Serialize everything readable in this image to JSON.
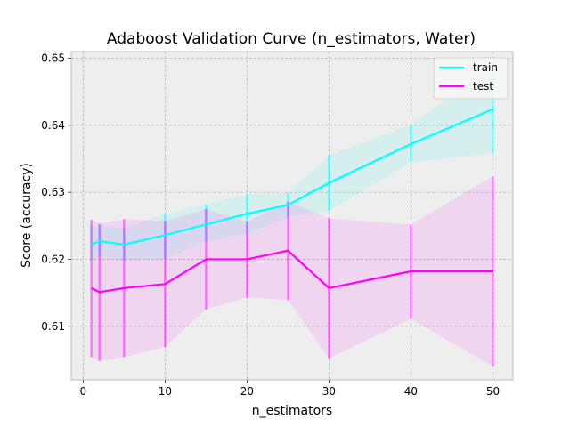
{
  "chart_data": {
    "type": "line",
    "title": "Adaboost Validation Curve (n_estimators, Water)",
    "xlabel": "n_estimators",
    "ylabel": "Score (accuracy)",
    "xlim": [
      -1.45,
      52.45
    ],
    "ylim": [
      0.602,
      0.651
    ],
    "xticks": [
      0,
      10,
      20,
      30,
      40,
      50
    ],
    "yticks": [
      0.61,
      0.62,
      0.63,
      0.64,
      0.65
    ],
    "grid": true,
    "legend_position": "top-right",
    "x": [
      1,
      2,
      5,
      10,
      15,
      20,
      25,
      30,
      40,
      50
    ],
    "series": [
      {
        "name": "train",
        "color": "#00ffff",
        "values": [
          0.6222,
          0.6227,
          0.6222,
          0.6236,
          0.6252,
          0.6268,
          0.6281,
          0.6314,
          0.6372,
          0.6424
        ],
        "lower": [
          0.6198,
          0.6204,
          0.6198,
          0.6201,
          0.6227,
          0.6238,
          0.6263,
          0.6272,
          0.6345,
          0.6358
        ],
        "upper": [
          0.625,
          0.6251,
          0.6246,
          0.6268,
          0.6282,
          0.6297,
          0.6299,
          0.6355,
          0.6401,
          0.649
        ]
      },
      {
        "name": "test",
        "color": "#ff00ff",
        "values": [
          0.6157,
          0.6151,
          0.6157,
          0.6163,
          0.62,
          0.62,
          0.6213,
          0.6157,
          0.6182,
          0.6182
        ],
        "lower": [
          0.6054,
          0.6048,
          0.6054,
          0.6069,
          0.6125,
          0.6143,
          0.6139,
          0.6052,
          0.6111,
          0.604
        ],
        "upper": [
          0.6259,
          0.6253,
          0.626,
          0.6257,
          0.6275,
          0.6256,
          0.6286,
          0.6261,
          0.6252,
          0.6324
        ]
      }
    ]
  }
}
